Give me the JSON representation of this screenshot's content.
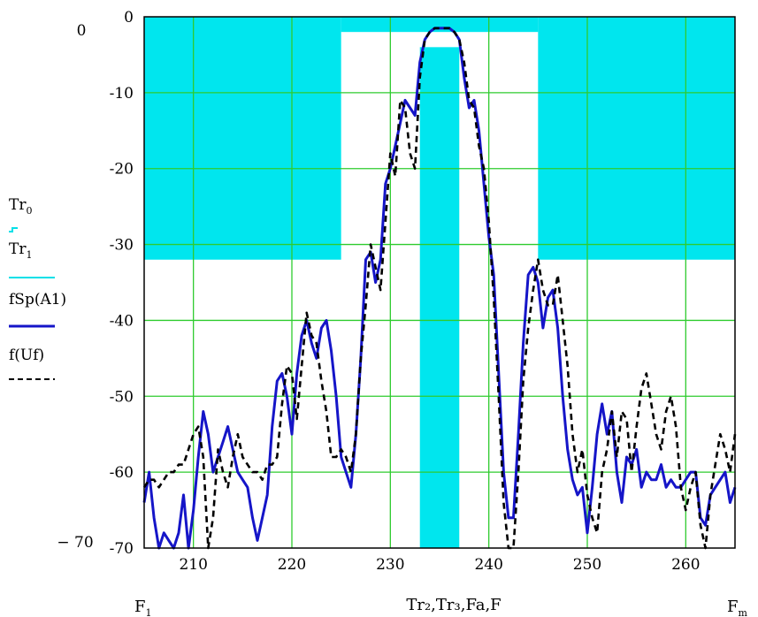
{
  "chart_data": {
    "type": "line",
    "xlim": [
      205,
      265
    ],
    "ylim": [
      -70,
      0
    ],
    "grid": true,
    "x_ticks": [
      210,
      220,
      230,
      240,
      250,
      260
    ],
    "y_ticks": [
      0,
      -10,
      -20,
      -30,
      -40,
      -50,
      -60,
      -70
    ],
    "y_tick_labels": [
      "0",
      "-10",
      "-20",
      "-30",
      "-40",
      "-50",
      "-60",
      "-70"
    ],
    "x_tick_labels": [
      "210",
      "220",
      "230",
      "240",
      "250",
      "260"
    ],
    "y_extra_labels": {
      "top": "0",
      "bottom": "− 70"
    },
    "x_extra_labels": {
      "left": {
        "base": "F",
        "sub": "1"
      },
      "center": "Tr₂,Tr₃,Fa,F",
      "right": {
        "base": "F",
        "sub": "m"
      }
    },
    "legend": [
      {
        "base": "Tr",
        "sub": "0",
        "color": "#00e0e8",
        "style": "filled-mask"
      },
      {
        "base": "Tr",
        "sub": "1",
        "color": "#00e0e8",
        "style": "filled-mask"
      },
      {
        "name": "fSp(A1)",
        "color": "#1515c8",
        "style": "solid"
      },
      {
        "name": "f(Uf)",
        "color": "#000000",
        "style": "dashed"
      }
    ],
    "mask": [
      {
        "x0": 205,
        "x1": 225,
        "y_bottom": -32,
        "y_top": 0
      },
      {
        "x0": 225,
        "x1": 245,
        "y_bottom": -2,
        "y_top": 0
      },
      {
        "x0": 245,
        "x1": 265,
        "y_bottom": -32,
        "y_top": 0
      },
      {
        "x0": 233,
        "x1": 237,
        "y_bottom": -70,
        "y_top": -4
      }
    ],
    "series": [
      {
        "name": "fSp(A1)",
        "color": "#1515c8",
        "x": [
          205,
          205.5,
          206,
          206.5,
          207,
          207.5,
          208,
          208.5,
          209,
          209.5,
          210,
          210.5,
          211,
          211.5,
          212,
          212.5,
          213,
          213.5,
          214,
          214.5,
          215,
          215.5,
          216,
          216.5,
          217,
          217.5,
          218,
          218.5,
          219,
          219.5,
          220,
          220.5,
          221,
          221.5,
          222,
          222.5,
          223,
          223.5,
          224,
          224.5,
          225,
          225.5,
          226,
          226.5,
          227,
          227.5,
          228,
          228.5,
          229,
          229.5,
          230,
          230.5,
          231,
          231.5,
          232,
          232.5,
          233,
          233.5,
          234,
          234.5,
          235,
          235.5,
          236,
          236.5,
          237,
          237.5,
          238,
          238.5,
          239,
          239.5,
          240,
          240.5,
          241,
          241.5,
          242,
          242.5,
          243,
          243.5,
          244,
          244.5,
          245,
          245.5,
          246,
          246.5,
          247,
          247.5,
          248,
          248.5,
          249,
          249.5,
          250,
          250.5,
          251,
          251.5,
          252,
          252.5,
          253,
          253.5,
          254,
          254.5,
          255,
          255.5,
          256,
          256.5,
          257,
          257.5,
          258,
          258.5,
          259,
          259.5,
          260,
          260.5,
          261,
          261.5,
          262,
          262.5,
          263,
          263.5,
          264,
          264.5,
          265
        ],
        "y": [
          -64,
          -60,
          -66,
          -70,
          -68,
          -69,
          -70,
          -68,
          -63,
          -70,
          -65,
          -58,
          -52,
          -55,
          -60,
          -58,
          -56,
          -54,
          -57,
          -60,
          -61,
          -62,
          -66,
          -69,
          -66,
          -63,
          -54,
          -48,
          -47,
          -50,
          -55,
          -47,
          -42,
          -40,
          -43,
          -45,
          -41,
          -40,
          -44,
          -50,
          -58,
          -60,
          -62,
          -55,
          -45,
          -32,
          -31,
          -35,
          -32,
          -22,
          -20,
          -17,
          -14,
          -11,
          -12,
          -13,
          -6,
          -3,
          -2,
          -1.5,
          -1.5,
          -1.5,
          -1.5,
          -2,
          -3,
          -8,
          -12,
          -11,
          -15,
          -22,
          -29,
          -34,
          -47,
          -60,
          -66,
          -66,
          -55,
          -43,
          -34,
          -33,
          -35,
          -41,
          -37,
          -36,
          -41,
          -50,
          -57,
          -61,
          -63,
          -62,
          -68,
          -62,
          -55,
          -51,
          -55,
          -52,
          -60,
          -64,
          -58,
          -59,
          -57,
          -62,
          -60,
          -61,
          -61,
          -59,
          -62,
          -61,
          -62,
          -62,
          -61,
          -60,
          -60,
          -66,
          -67,
          -63,
          -62,
          -61,
          -60,
          -64,
          -62
        ]
      },
      {
        "name": "f(Uf)",
        "color": "#000000",
        "dashed": true,
        "x": [
          205,
          205.5,
          206,
          206.5,
          207,
          207.5,
          208,
          208.5,
          209,
          209.5,
          210,
          210.5,
          211,
          211.5,
          212,
          212.5,
          213,
          213.5,
          214,
          214.5,
          215,
          215.5,
          216,
          216.5,
          217,
          217.5,
          218,
          218.5,
          219,
          219.5,
          220,
          220.5,
          221,
          221.5,
          222,
          222.5,
          223,
          223.5,
          224,
          224.5,
          225,
          225.5,
          226,
          226.5,
          227,
          227.5,
          228,
          228.5,
          229,
          229.5,
          230,
          230.5,
          231,
          231.5,
          232,
          232.5,
          233,
          233.5,
          234,
          234.5,
          235,
          235.5,
          236,
          236.5,
          237,
          237.5,
          238,
          238.5,
          239,
          239.5,
          240,
          240.5,
          241,
          241.5,
          242,
          242.5,
          243,
          243.5,
          244,
          244.5,
          245,
          245.5,
          246,
          246.5,
          247,
          247.5,
          248,
          248.5,
          249,
          249.5,
          250,
          250.5,
          251,
          251.5,
          252,
          252.5,
          253,
          253.5,
          254,
          254.5,
          255,
          255.5,
          256,
          256.5,
          257,
          257.5,
          258,
          258.5,
          259,
          259.5,
          260,
          260.5,
          261,
          261.5,
          262,
          262.5,
          263,
          263.5,
          264,
          264.5,
          265
        ],
        "y": [
          -62,
          -61,
          -61,
          -62,
          -61,
          -60,
          -60,
          -59,
          -59,
          -57,
          -55,
          -54,
          -58,
          -70,
          -66,
          -57,
          -60,
          -62,
          -58,
          -55,
          -58,
          -59,
          -60,
          -60,
          -61,
          -59,
          -59,
          -58,
          -51,
          -46,
          -47,
          -53,
          -46,
          -39,
          -42,
          -43,
          -48,
          -52,
          -58,
          -58,
          -57,
          -58,
          -60,
          -55,
          -45,
          -38,
          -30,
          -33,
          -36,
          -27,
          -18,
          -21,
          -11,
          -12,
          -18,
          -20,
          -8,
          -3,
          -2,
          -1.5,
          -1.5,
          -1.5,
          -1.5,
          -2,
          -3,
          -6,
          -11,
          -12,
          -17,
          -20,
          -27,
          -37,
          -50,
          -64,
          -70,
          -70,
          -60,
          -48,
          -41,
          -36,
          -32,
          -36,
          -38,
          -38,
          -34,
          -40,
          -46,
          -55,
          -60,
          -57,
          -63,
          -66,
          -68,
          -60,
          -57,
          -52,
          -58,
          -52,
          -53,
          -60,
          -54,
          -49,
          -47,
          -51,
          -55,
          -57,
          -52,
          -50,
          -54,
          -62,
          -65,
          -62,
          -60,
          -67,
          -70,
          -63,
          -59,
          -55,
          -57,
          -60,
          -55
        ]
      }
    ]
  }
}
